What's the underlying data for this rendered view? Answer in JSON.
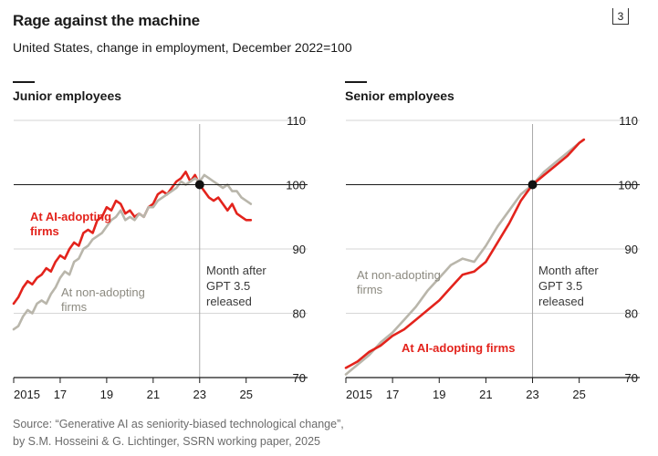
{
  "header": {
    "title": "Rage against the machine",
    "subtitle": "United States, change in employment, December 2022=100",
    "page_number": "3"
  },
  "source": {
    "line1": "Source: “Generative AI as seniority-biased technological change”,",
    "line2": "by S.M. Hosseini & G. Lichtinger, SSRN working paper, 2025"
  },
  "colors": {
    "ai": "#e3231c",
    "non_ai": "#b9b6ab",
    "grid": "#d6d6d6",
    "axis": "#1a1a1a"
  },
  "chart_data": [
    {
      "type": "line",
      "title": "Junior employees",
      "ylim": [
        70,
        110
      ],
      "yticks": [
        70,
        80,
        90,
        100,
        110
      ],
      "xlim": [
        2015,
        2025.6
      ],
      "xticks": [
        2015,
        2017,
        2019,
        2021,
        2023,
        2025
      ],
      "xtick_labels": [
        "2015",
        "17",
        "19",
        "21",
        "23",
        "25"
      ],
      "reference_line": 100,
      "event": {
        "x": 2023.0,
        "y": 100,
        "label_lines": [
          "Month after",
          "GPT 3.5",
          "released"
        ]
      },
      "series": [
        {
          "name": "AI-adopting firms",
          "label_lines": [
            "At AI-adopting",
            "firms"
          ],
          "color_key": "ai",
          "x": [
            2015.0,
            2015.2,
            2015.4,
            2015.6,
            2015.8,
            2016.0,
            2016.2,
            2016.4,
            2016.6,
            2016.8,
            2017.0,
            2017.2,
            2017.4,
            2017.6,
            2017.8,
            2018.0,
            2018.2,
            2018.4,
            2018.6,
            2018.8,
            2019.0,
            2019.2,
            2019.4,
            2019.6,
            2019.8,
            2020.0,
            2020.2,
            2020.4,
            2020.6,
            2020.8,
            2021.0,
            2021.2,
            2021.4,
            2021.6,
            2021.8,
            2022.0,
            2022.2,
            2022.4,
            2022.6,
            2022.8,
            2023.0,
            2023.2,
            2023.4,
            2023.6,
            2023.8,
            2024.0,
            2024.2,
            2024.4,
            2024.6,
            2024.8,
            2025.0,
            2025.2
          ],
          "values": [
            81.5,
            82.5,
            84.0,
            85.0,
            84.5,
            85.5,
            86.0,
            87.0,
            86.5,
            88.0,
            89.0,
            88.5,
            90.0,
            91.0,
            90.5,
            92.5,
            93.0,
            92.5,
            94.5,
            95.0,
            96.5,
            96.0,
            97.5,
            97.0,
            95.5,
            96.0,
            95.0,
            95.5,
            95.0,
            96.5,
            97.0,
            98.5,
            99.0,
            98.5,
            99.5,
            100.5,
            101.0,
            102.0,
            100.5,
            101.5,
            100.0,
            99.0,
            98.0,
            97.5,
            98.0,
            97.0,
            96.0,
            97.0,
            95.5,
            95.0,
            94.5,
            94.5
          ]
        },
        {
          "name": "Non-adopting firms",
          "label_lines": [
            "At non-adopting",
            "firms"
          ],
          "color_key": "non_ai",
          "x": [
            2015.0,
            2015.2,
            2015.4,
            2015.6,
            2015.8,
            2016.0,
            2016.2,
            2016.4,
            2016.6,
            2016.8,
            2017.0,
            2017.2,
            2017.4,
            2017.6,
            2017.8,
            2018.0,
            2018.2,
            2018.4,
            2018.6,
            2018.8,
            2019.0,
            2019.2,
            2019.4,
            2019.6,
            2019.8,
            2020.0,
            2020.2,
            2020.4,
            2020.6,
            2020.8,
            2021.0,
            2021.2,
            2021.4,
            2021.6,
            2021.8,
            2022.0,
            2022.2,
            2022.4,
            2022.6,
            2022.8,
            2023.0,
            2023.2,
            2023.4,
            2023.6,
            2023.8,
            2024.0,
            2024.2,
            2024.4,
            2024.6,
            2024.8,
            2025.0,
            2025.2
          ],
          "values": [
            77.5,
            78.0,
            79.5,
            80.5,
            80.0,
            81.5,
            82.0,
            81.5,
            83.0,
            84.0,
            85.5,
            86.5,
            86.0,
            88.0,
            88.5,
            90.0,
            90.5,
            91.5,
            92.0,
            92.5,
            93.5,
            94.5,
            95.0,
            96.0,
            94.5,
            95.0,
            94.5,
            95.5,
            95.0,
            96.5,
            96.5,
            97.5,
            98.0,
            98.5,
            99.0,
            99.5,
            100.5,
            100.0,
            100.5,
            101.0,
            100.5,
            101.5,
            101.0,
            100.5,
            100.0,
            99.5,
            100.0,
            99.0,
            99.0,
            98.0,
            97.5,
            97.0
          ]
        }
      ]
    },
    {
      "type": "line",
      "title": "Senior employees",
      "ylim": [
        70,
        110
      ],
      "yticks": [
        70,
        80,
        90,
        100,
        110
      ],
      "xlim": [
        2015,
        2025.6
      ],
      "xticks": [
        2015,
        2017,
        2019,
        2021,
        2023,
        2025
      ],
      "xtick_labels": [
        "2015",
        "17",
        "19",
        "21",
        "23",
        "25"
      ],
      "reference_line": 100,
      "event": {
        "x": 2023.0,
        "y": 100,
        "label_lines": [
          "Month after",
          "GPT 3.5",
          "released"
        ]
      },
      "series": [
        {
          "name": "Non-adopting firms",
          "label_lines": [
            "At non-adopting",
            "firms"
          ],
          "color_key": "non_ai",
          "x": [
            2015.0,
            2015.5,
            2016.0,
            2016.5,
            2017.0,
            2017.5,
            2018.0,
            2018.5,
            2019.0,
            2019.5,
            2020.0,
            2020.5,
            2021.0,
            2021.5,
            2022.0,
            2022.5,
            2023.0,
            2023.5,
            2024.0,
            2024.5,
            2025.0,
            2025.2
          ],
          "values": [
            70.5,
            72.0,
            73.5,
            75.5,
            77.0,
            79.0,
            81.0,
            83.5,
            85.5,
            87.5,
            88.5,
            88.0,
            90.5,
            93.5,
            96.0,
            98.5,
            100.0,
            102.0,
            103.5,
            105.0,
            106.5,
            107.0
          ]
        },
        {
          "name": "AI-adopting firms",
          "label_lines": [
            "At AI-adopting firms"
          ],
          "color_key": "ai",
          "x": [
            2015.0,
            2015.5,
            2016.0,
            2016.5,
            2017.0,
            2017.5,
            2018.0,
            2018.5,
            2019.0,
            2019.5,
            2020.0,
            2020.5,
            2021.0,
            2021.5,
            2022.0,
            2022.5,
            2023.0,
            2023.5,
            2024.0,
            2024.5,
            2025.0,
            2025.2
          ],
          "values": [
            71.5,
            72.5,
            74.0,
            75.0,
            76.5,
            77.5,
            79.0,
            80.5,
            82.0,
            84.0,
            86.0,
            86.5,
            88.0,
            91.0,
            94.0,
            97.5,
            100.0,
            101.5,
            103.0,
            104.5,
            106.5,
            107.0
          ]
        }
      ]
    }
  ]
}
